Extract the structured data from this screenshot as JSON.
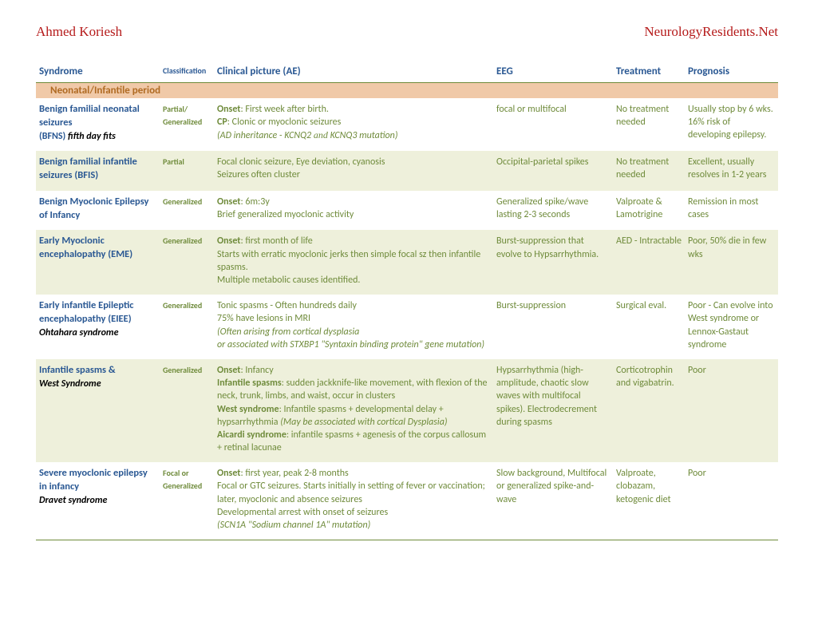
{
  "header": {
    "author": "Ahmed Koriesh",
    "site": "NeurologyResidents.Net"
  },
  "columns": [
    "Syndrome",
    "Classification",
    "Clinical picture (AE)",
    "EEG",
    "Treatment",
    "Prognosis"
  ],
  "section_title": "Neonatal/Infantile period",
  "rows": [
    {
      "alt": false,
      "syndrome_main": "Benign familial neonatal seizures",
      "syndrome_code": "(BFNS)",
      "syndrome_suffix": " fifth day fits",
      "classification": "Partial/ Generalized",
      "onset_label": "Onset",
      "onset_text": ": First week after birth.",
      "cp_label": "CP",
      "cp_text": ": Clonic or myoclonic seizures",
      "note_prefix": "(AD inheritance - KCNQ2 ",
      "note_and": "and",
      "note_suffix": "  KCNQ3 mutation)",
      "eeg": "focal or multifocal",
      "treatment": "No treatment needed",
      "prognosis": "Usually stop by 6 wks. 16% risk of developing epilepsy."
    },
    {
      "alt": true,
      "syndrome_main": "Benign familial infantile seizures (BFIS)",
      "classification": "Partial",
      "line1": "Focal clonic seizure, Eye deviation, cyanosis",
      "line2": "Seizures often cluster",
      "eeg": "Occipital-parietal spikes",
      "treatment": "No treatment needed",
      "prognosis": "Excellent, usually resolves in 1-2 years"
    },
    {
      "alt": false,
      "syndrome_main": "Benign Myoclonic Epilepsy of Infancy",
      "classification": "Generalized",
      "onset_label": "Onset",
      "onset_text": ": 6m:3y",
      "line2": "Brief generalized myoclonic activity",
      "eeg": "Generalized spike/wave lasting 2-3 seconds",
      "treatment": "Valproate & Lamotrigine",
      "prognosis": "Remission in most cases"
    },
    {
      "alt": true,
      "syndrome_main": "Early Myoclonic encephalopathy (EME)",
      "classification": "Generalized",
      "onset_label": "Onset",
      "onset_text": ": first month of life",
      "line2": "Starts with erratic myoclonic jerks then simple focal sz then infantile spasms.",
      "line3": "Multiple metabolic causes identified.",
      "eeg": "Burst-suppression that evolve to Hypsarrhythmia.",
      "treatment": "AED - Intractable",
      "prognosis": "Poor, 50% die in few wks"
    },
    {
      "alt": false,
      "syndrome_main": "Early infantile Epileptic encephalopathy (EIEE)",
      "syndrome_sub": "Ohtahara syndrome",
      "classification": "Generalized",
      "line1": "Tonic spasms - Often hundreds daily",
      "line2": "75% have lesions in MRI",
      "italic1": "(Often arising from cortical dysplasia",
      "italic2": "or associated with STXBP1 \"Syntaxin binding protein\" gene mutation)",
      "eeg": "Burst-suppression",
      "treatment": "Surgical eval.",
      "prognosis": "Poor - Can evolve into West syndrome or Lennox-Gastaut syndrome"
    },
    {
      "alt": true,
      "syndrome_main": "Infantile spasms &",
      "syndrome_sub": "West Syndrome",
      "classification": "Generalized",
      "onset_label": "Onset",
      "onset_text": ": Infancy",
      "b1_label": "Infantile spasms",
      "b1_text": ": sudden jackknife-like movement, with flexion of the neck, trunk, limbs, and waist, occur in clusters",
      "b2_label": "West syndrome",
      "b2_text": ": Infantile spasms + developmental delay + hypsarrhythmia ",
      "b2_italic": "(May be associated with cortical Dysplasia)",
      "b3_label": "Aicardi syndrome",
      "b3_text": ": infantile spasms + agenesis of the corpus callosum + retinal lacunae",
      "eeg": "Hypsarrhythmia (high-amplitude, chaotic slow waves with multifocal spikes). Electrodecrement during spasms",
      "treatment": "Corticotrophin and vigabatrin.",
      "prognosis": "Poor"
    },
    {
      "alt": false,
      "syndrome_main": "Severe myoclonic epilepsy in infancy",
      "syndrome_sub": "Dravet syndrome",
      "classification": "Focal or Generalized",
      "onset_label": "Onset",
      "onset_text": ": first year, peak 2-8 months",
      "line2": "Focal or GTC seizures. Starts initially in setting of fever or vaccination; later, myoclonic and absence seizures",
      "line3": "Developmental arrest with onset of seizures",
      "italic1": "(SCN1A \"Sodium channel 1A\" mutation)",
      "eeg": "Slow background, Multifocal or generalized spike-and-wave",
      "treatment": "Valproate, clobazam, ketogenic diet",
      "prognosis": "Poor"
    }
  ]
}
